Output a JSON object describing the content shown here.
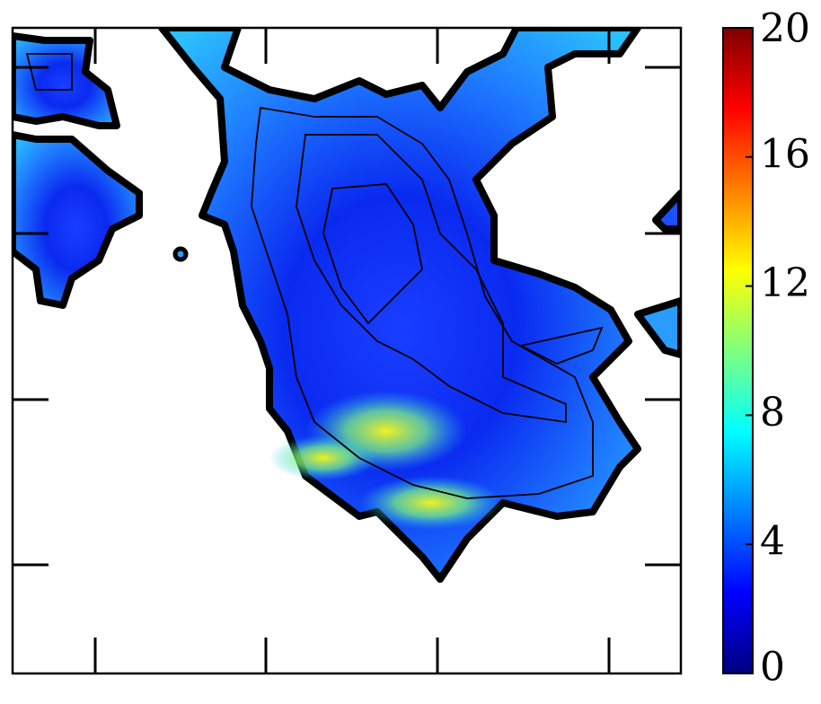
{
  "chart_data": {
    "type": "heatmap",
    "colormap": "jet",
    "colorbar": {
      "lim": [
        0,
        20
      ],
      "ticks": [
        0,
        4,
        8,
        12,
        16,
        20
      ]
    }
  }
}
